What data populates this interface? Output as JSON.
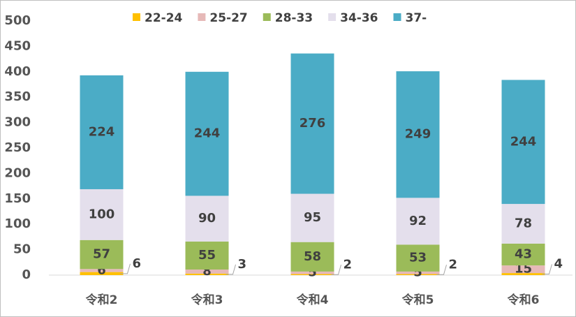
{
  "chart_data": {
    "type": "stacked-bar",
    "categories": [
      "令和2",
      "令和3",
      "令和4",
      "令和5",
      "令和6"
    ],
    "series": [
      {
        "name": "22-24",
        "color": "#ffc000",
        "values": [
          6,
          3,
          2,
          2,
          4
        ]
      },
      {
        "name": "25-27",
        "color": "#e6b9b8",
        "values": [
          6,
          8,
          5,
          5,
          15
        ]
      },
      {
        "name": "28-33",
        "color": "#9bbb59",
        "values": [
          57,
          55,
          58,
          53,
          43
        ]
      },
      {
        "name": "34-36",
        "color": "#e4dfec",
        "values": [
          100,
          90,
          95,
          92,
          78
        ]
      },
      {
        "name": "37-",
        "color": "#4bacc6",
        "values": [
          224,
          244,
          276,
          249,
          244
        ]
      }
    ],
    "ylim": [
      0,
      500
    ],
    "yticks": [
      0,
      50,
      100,
      150,
      200,
      250,
      300,
      350,
      400,
      450,
      500
    ]
  }
}
